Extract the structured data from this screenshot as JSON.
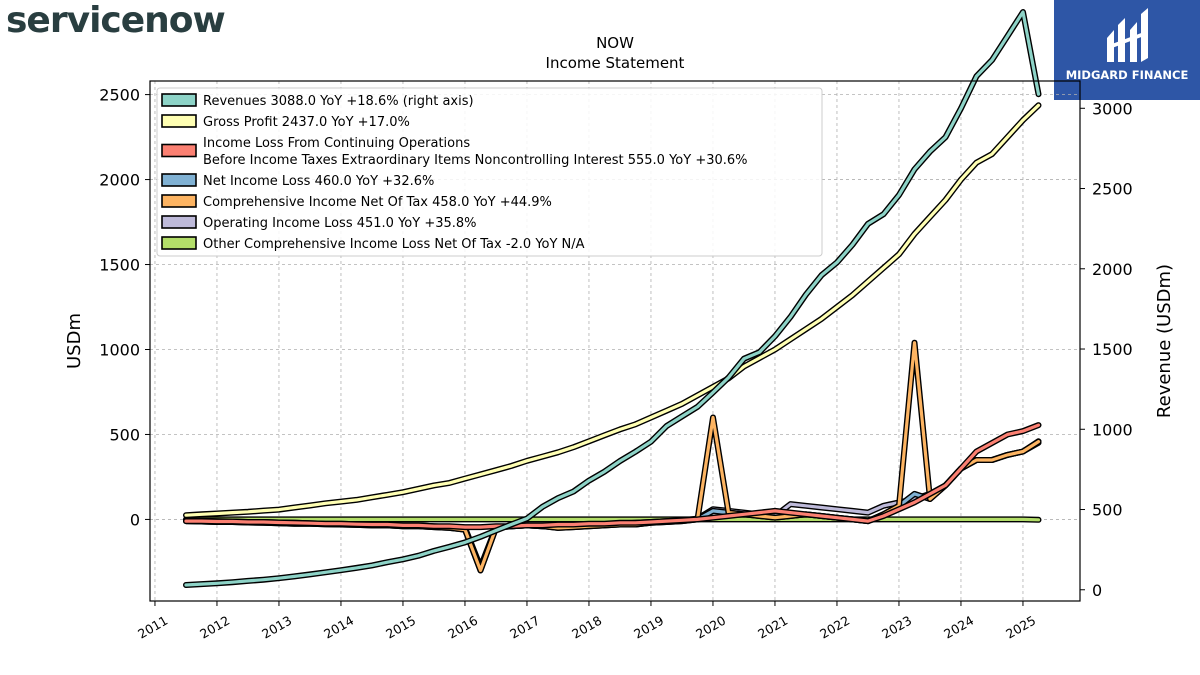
{
  "brand": {
    "left_logo": "servicenow",
    "right_logo": "MIDGARD FINANCE"
  },
  "chart_data": {
    "type": "line",
    "title": "NOW",
    "subtitle": "Income Statement",
    "ylabel": "USDm",
    "ylabel_right": "Revenue (USDm)",
    "ylim": [
      -480,
      2580
    ],
    "ylim_right": [
      -70,
      3170
    ],
    "yticks": [
      0,
      500,
      1000,
      1500,
      2000,
      2500
    ],
    "yticks_right": [
      0,
      500,
      1000,
      1500,
      2000,
      2500,
      3000
    ],
    "xlim": [
      2010.92,
      2025.92
    ],
    "xticks": [
      "2011",
      "2012",
      "2013",
      "2014",
      "2015",
      "2016",
      "2017",
      "2018",
      "2019",
      "2020",
      "2021",
      "2022",
      "2023",
      "2024",
      "2025"
    ],
    "grid": true,
    "legend_position": "top-left",
    "x": [
      2011.5,
      2011.75,
      2012.0,
      2012.25,
      2012.5,
      2012.75,
      2013.0,
      2013.25,
      2013.5,
      2013.75,
      2014.0,
      2014.25,
      2014.5,
      2014.75,
      2015.0,
      2015.25,
      2015.5,
      2015.75,
      2016.0,
      2016.25,
      2016.5,
      2016.75,
      2017.0,
      2017.25,
      2017.5,
      2017.75,
      2018.0,
      2018.25,
      2018.5,
      2018.75,
      2019.0,
      2019.25,
      2019.5,
      2019.75,
      2020.0,
      2020.25,
      2020.5,
      2020.75,
      2021.0,
      2021.25,
      2021.5,
      2021.75,
      2022.0,
      2022.25,
      2022.5,
      2022.75,
      2023.0,
      2023.25,
      2023.5,
      2023.75,
      2024.0,
      2024.25,
      2024.5,
      2024.75,
      2025.0,
      2025.25
    ],
    "series": [
      {
        "name": "Revenues",
        "legend": "Revenues  3088.0 YoY +18.6% (right axis)",
        "color": "#8dd3c7",
        "axis": "right",
        "values": [
          30,
          35,
          40,
          47,
          55,
          63,
          72,
          83,
          96,
          109,
          122,
          136,
          152,
          172,
          190,
          212,
          242,
          268,
          295,
          330,
          369,
          407,
          444,
          517,
          571,
          612,
          680,
          736,
          802,
          860,
          923,
          1020,
          1080,
          1140,
          1230,
          1322,
          1440,
          1480,
          1580,
          1700,
          1840,
          1960,
          2040,
          2150,
          2280,
          2340,
          2460,
          2620,
          2730,
          2820,
          3000,
          3200,
          3300,
          3450,
          3600,
          3088
        ]
      },
      {
        "name": "Gross Profit",
        "legend": "Gross Profit  2437.0 YoY +17.0%",
        "color": "#ffffb3",
        "axis": "left",
        "values": [
          25,
          30,
          35,
          40,
          45,
          52,
          58,
          70,
          82,
          95,
          105,
          115,
          130,
          145,
          160,
          180,
          200,
          215,
          240,
          265,
          290,
          315,
          345,
          370,
          395,
          425,
          460,
          495,
          530,
          560,
          600,
          640,
          680,
          730,
          780,
          830,
          900,
          950,
          1000,
          1060,
          1120,
          1180,
          1250,
          1320,
          1400,
          1480,
          1560,
          1680,
          1780,
          1880,
          2000,
          2100,
          2150,
          2250,
          2350,
          2437
        ]
      },
      {
        "name": "Income Loss From Continuing Operations Before Income Taxes Extraordinary Items Noncontrolling Interest",
        "legend": "Income Loss From Continuing Operations\nBefore Income Taxes Extraordinary Items Noncontrolling Interest  555.0 YoY +30.6%",
        "color": "#fb8072",
        "axis": "left",
        "values": [
          -10,
          -10,
          -12,
          -12,
          -15,
          -15,
          -18,
          -20,
          -22,
          -25,
          -25,
          -28,
          -30,
          -30,
          -35,
          -35,
          -40,
          -40,
          -45,
          -45,
          -40,
          -40,
          -35,
          -35,
          -30,
          -30,
          -25,
          -25,
          -20,
          -20,
          -15,
          -10,
          -5,
          0,
          10,
          20,
          30,
          40,
          50,
          40,
          30,
          20,
          10,
          0,
          -10,
          20,
          60,
          100,
          150,
          200,
          300,
          400,
          450,
          500,
          520,
          555
        ]
      },
      {
        "name": "Net Income Loss",
        "legend": "Net Income Loss  460.0 YoY +32.6%",
        "color": "#80b1d3",
        "axis": "left",
        "values": [
          -10,
          -12,
          -15,
          -15,
          -18,
          -20,
          -22,
          -25,
          -25,
          -28,
          -30,
          -32,
          -35,
          -35,
          -40,
          -40,
          -45,
          -50,
          -60,
          -300,
          -50,
          -40,
          -35,
          -40,
          -50,
          -45,
          -40,
          -35,
          -30,
          -30,
          -20,
          -15,
          -10,
          0,
          50,
          40,
          30,
          20,
          10,
          20,
          30,
          20,
          10,
          0,
          -10,
          30,
          80,
          150,
          120,
          200,
          300,
          350,
          350,
          380,
          400,
          460
        ]
      },
      {
        "name": "Comprehensive Income Net Of Tax",
        "legend": "Comprehensive Income Net Of Tax  458.0 YoY +44.9%",
        "color": "#fdb462",
        "axis": "left",
        "values": [
          -10,
          -12,
          -15,
          -15,
          -18,
          -20,
          -22,
          -25,
          -25,
          -28,
          -30,
          -32,
          -35,
          -35,
          -40,
          -40,
          -45,
          -50,
          -60,
          -300,
          -50,
          -40,
          -35,
          -40,
          -50,
          -45,
          -40,
          -35,
          -30,
          -30,
          -20,
          -15,
          -10,
          0,
          600,
          40,
          30,
          20,
          10,
          20,
          30,
          20,
          10,
          0,
          -10,
          30,
          80,
          1040,
          120,
          200,
          300,
          350,
          350,
          380,
          400,
          458
        ]
      },
      {
        "name": "Operating Income Loss",
        "legend": "Operating Income Loss  451.0 YoY +35.8%",
        "color": "#bebada",
        "axis": "left",
        "values": [
          -5,
          -8,
          -10,
          -12,
          -15,
          -15,
          -18,
          -20,
          -22,
          -25,
          -25,
          -28,
          -30,
          -30,
          -35,
          -35,
          -40,
          -45,
          -50,
          -280,
          -45,
          -40,
          -35,
          -40,
          -45,
          -40,
          -35,
          -30,
          -25,
          -20,
          -15,
          -10,
          -5,
          5,
          60,
          50,
          40,
          30,
          20,
          90,
          80,
          70,
          60,
          50,
          40,
          80,
          100,
          120,
          150,
          200,
          300,
          350,
          350,
          380,
          400,
          451
        ]
      },
      {
        "name": "Other Comprehensive Income Loss Net Of Tax",
        "legend": "Other Comprehensive Income Loss Net Of Tax  -2.0 YoY N/A",
        "color": "#b3de69",
        "axis": "left",
        "values": [
          0,
          0,
          0,
          0,
          0,
          0,
          0,
          0,
          0,
          0,
          0,
          0,
          0,
          0,
          0,
          0,
          0,
          0,
          0,
          0,
          0,
          0,
          0,
          0,
          0,
          0,
          0,
          0,
          0,
          0,
          0,
          0,
          0,
          0,
          0,
          0,
          0,
          0,
          0,
          0,
          0,
          0,
          0,
          0,
          0,
          0,
          0,
          0,
          0,
          0,
          0,
          0,
          0,
          0,
          0,
          -2
        ]
      }
    ]
  }
}
